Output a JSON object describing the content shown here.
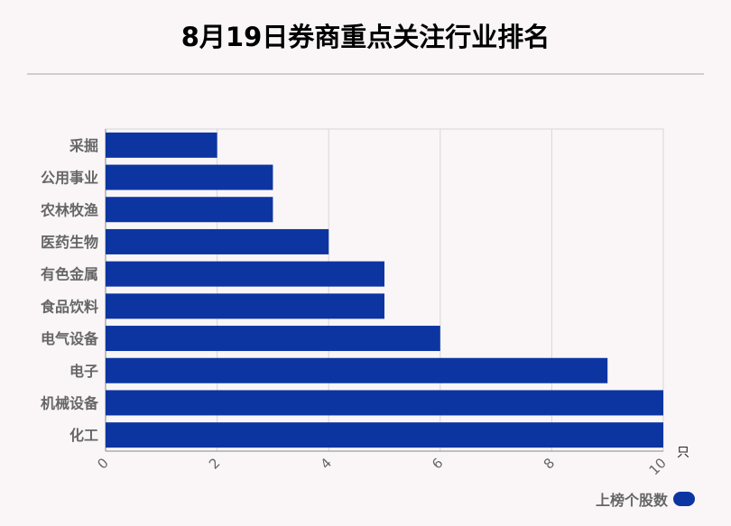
{
  "chart_data": {
    "type": "bar",
    "orientation": "horizontal",
    "title": "8月19日券商重点关注行业排名",
    "categories": [
      "采掘",
      "公用事业",
      "农林牧渔",
      "医药生物",
      "有色金属",
      "食品饮料",
      "电气设备",
      "电子",
      "机械设备",
      "化工"
    ],
    "series": [
      {
        "name": "上榜个股数",
        "values": [
          2,
          3,
          3,
          4,
          5,
          5,
          6,
          9,
          10,
          10
        ],
        "color": "#0d35a1"
      }
    ],
    "x_ticks": [
      "0",
      "2",
      "4",
      "6",
      "8",
      "10"
    ],
    "xlim": [
      0,
      10
    ],
    "xunit": "只",
    "grid": true,
    "legend_position": "bottom-right"
  }
}
